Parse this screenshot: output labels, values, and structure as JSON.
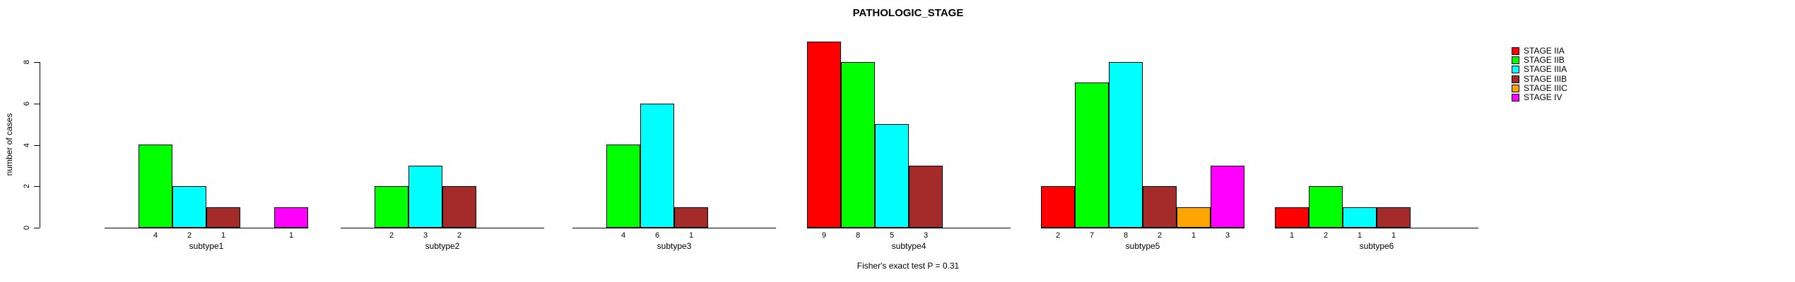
{
  "title": "PATHOLOGIC_STAGE",
  "annotation": "Fisher's exact test P = 0.31",
  "y_axis": {
    "label": "number of cases",
    "ticks": [
      0,
      2,
      4,
      6,
      8
    ]
  },
  "chart_data": {
    "type": "bar",
    "grouped": true,
    "title": "PATHOLOGIC_STAGE",
    "xlabel": "",
    "ylabel": "number of cases",
    "ylim": [
      0,
      8
    ],
    "yticks": [
      0,
      2,
      4,
      6,
      8
    ],
    "grid": false,
    "legend_position": "top-right",
    "annotation": "Fisher's exact test P = 0.31",
    "bar_value_labels": "value shown below each non-zero bar",
    "categories": [
      "subtype1",
      "subtype2",
      "subtype3",
      "subtype4",
      "subtype5",
      "subtype6"
    ],
    "series": [
      {
        "name": "STAGE IIA",
        "color": "#ff0000",
        "values": [
          0,
          0,
          0,
          9,
          2,
          1
        ]
      },
      {
        "name": "STAGE IIB",
        "color": "#00ff00",
        "values": [
          4,
          2,
          4,
          8,
          7,
          2
        ]
      },
      {
        "name": "STAGE IIIA",
        "color": "#00ffff",
        "values": [
          2,
          3,
          6,
          5,
          8,
          1
        ]
      },
      {
        "name": "STAGE IIIB",
        "color": "#a52a2a",
        "values": [
          1,
          2,
          1,
          3,
          2,
          1
        ]
      },
      {
        "name": "STAGE IIIC",
        "color": "#ffa500",
        "values": [
          0,
          0,
          0,
          0,
          1,
          0
        ]
      },
      {
        "name": "STAGE IV",
        "color": "#ff00ff",
        "values": [
          1,
          0,
          0,
          0,
          3,
          0
        ]
      }
    ]
  }
}
